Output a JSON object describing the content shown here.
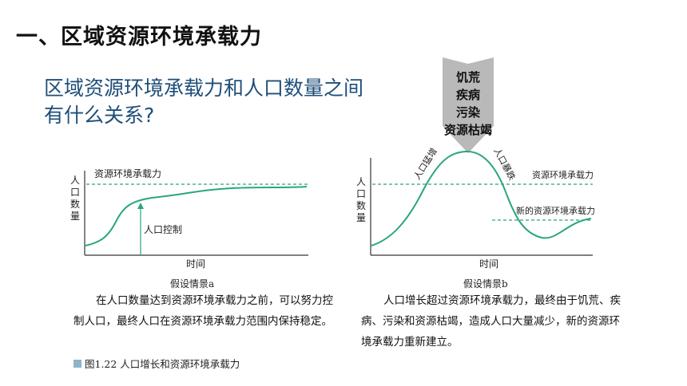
{
  "slide": {
    "title": "一、区域资源环境承载力",
    "question": "区域资源环境承载力和人口数量之间有什么关系?"
  },
  "chart_a": {
    "ylabel": "人口数量",
    "xlabel": "时间",
    "capacity_label": "资源环境承载力",
    "control_label": "人口控制",
    "caption": "假设情景a",
    "text": "在人口数量达到资源环境承载力之前，可以努力控制人口，最终人口在资源环境承载力范围内保持稳定。"
  },
  "chart_b": {
    "ylabel": "人口数量",
    "xlabel": "时间",
    "capacity_label": "资源环境承载力",
    "new_capacity_label": "新的资源环境承载力",
    "rise_label": "人口猛增",
    "fall_label": "人口暴跌",
    "caption": "假设情景b",
    "text": "人口增长超过资源环境承载力，最终由于饥荒、疾病、污染和资源枯竭，造成人口大量减少，新的资源环境承载力重新建立。",
    "causes": [
      "饥荒",
      "疾病",
      "污染",
      "资源枯竭"
    ]
  },
  "figure_caption": "图1.22  人口增长和资源环境承载力",
  "colors": {
    "curve": "#2aa57f",
    "axis": "#333333",
    "arrow": "#b8b8b8",
    "question": "#1f4e79"
  }
}
